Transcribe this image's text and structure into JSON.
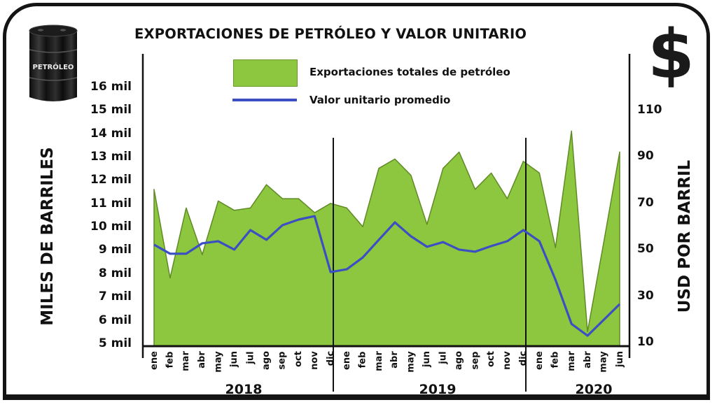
{
  "chart_data": {
    "type": "area+line",
    "title": "EXPORTACIONES DE PETRÓLEO Y VALOR UNITARIO",
    "ylabel": "MILES DE BARRILES",
    "y2label": "USD POR BARRIL",
    "ylim": [
      5,
      16
    ],
    "y2lim": [
      10,
      110
    ],
    "yticks": [
      "16 mil",
      "15 mil",
      "14 mil",
      "13 mil",
      "12 mil",
      "11 mil",
      "10 mil",
      "9 mil",
      "8 mil",
      "7 mil",
      "6 mil",
      "5 mil"
    ],
    "y2ticks": [
      "110",
      "90",
      "70",
      "50",
      "30",
      "10"
    ],
    "years": [
      "2018",
      "2019",
      "2020"
    ],
    "categories": [
      "ene",
      "feb",
      "mar",
      "abr",
      "may",
      "jun",
      "jul",
      "ago",
      "sep",
      "oct",
      "nov",
      "dic",
      "ene",
      "feb",
      "mar",
      "abr",
      "may",
      "jun",
      "jul",
      "ago",
      "sep",
      "oct",
      "nov",
      "dic",
      "ene",
      "feb",
      "mar",
      "abr",
      "may",
      "jun"
    ],
    "legend_position": "top-center",
    "grid": false,
    "series": [
      {
        "name": "Exportaciones totales de petróleo",
        "kind": "area",
        "axis": "left",
        "color": "#8dc63f",
        "values": [
          11.6,
          7.8,
          10.8,
          8.8,
          11.1,
          10.7,
          10.8,
          11.8,
          11.2,
          11.2,
          10.6,
          11.0,
          10.8,
          10.0,
          12.5,
          12.9,
          12.2,
          10.1,
          12.5,
          13.2,
          11.6,
          12.3,
          11.2,
          12.8,
          12.3,
          9.1,
          14.1,
          5.5,
          9.3,
          13.2
        ]
      },
      {
        "name": "Valor unitario promedio",
        "kind": "line",
        "axis": "right",
        "color": "#3b4fc4",
        "values": [
          51.9,
          48,
          48,
          52.5,
          53.4,
          49.8,
          58.2,
          54,
          60.3,
          62.7,
          64.2,
          40.1,
          41.3,
          46.4,
          54,
          61.5,
          55.5,
          51,
          53,
          49.8,
          48.9,
          51.3,
          53.4,
          58.2,
          53.4,
          36.8,
          17.8,
          12.7,
          19.5,
          26.3
        ]
      }
    ]
  },
  "icons": {
    "barrel": "oil-barrel-icon",
    "barrel_text": "PETRÓLEO",
    "dollar": "$"
  }
}
